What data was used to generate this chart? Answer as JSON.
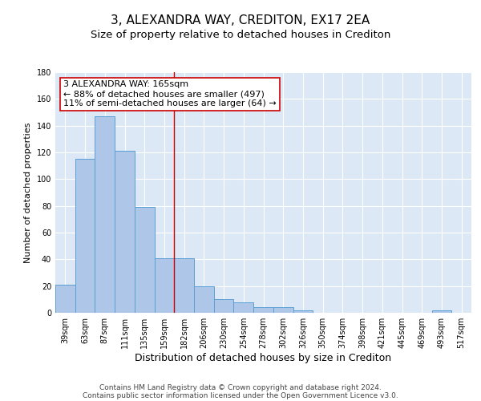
{
  "title": "3, ALEXANDRA WAY, CREDITON, EX17 2EA",
  "subtitle": "Size of property relative to detached houses in Crediton",
  "xlabel": "Distribution of detached houses by size in Crediton",
  "ylabel": "Number of detached properties",
  "categories": [
    "39sqm",
    "63sqm",
    "87sqm",
    "111sqm",
    "135sqm",
    "159sqm",
    "182sqm",
    "206sqm",
    "230sqm",
    "254sqm",
    "278sqm",
    "302sqm",
    "326sqm",
    "350sqm",
    "374sqm",
    "398sqm",
    "421sqm",
    "445sqm",
    "469sqm",
    "493sqm",
    "517sqm"
  ],
  "values": [
    21,
    115,
    147,
    121,
    79,
    41,
    41,
    20,
    10,
    8,
    4,
    4,
    2,
    0,
    0,
    0,
    0,
    0,
    0,
    2,
    0
  ],
  "bar_color": "#aec6e8",
  "bar_edge_color": "#5a9fd4",
  "vline_x_index": 5.5,
  "vline_color": "#cc0000",
  "annotation_line1": "3 ALEXANDRA WAY: 165sqm",
  "annotation_line2": "← 88% of detached houses are smaller (497)",
  "annotation_line3": "11% of semi-detached houses are larger (64) →",
  "annotation_box_color": "#ffffff",
  "annotation_box_edge_color": "#cc0000",
  "ylim": [
    0,
    180
  ],
  "yticks": [
    0,
    20,
    40,
    60,
    80,
    100,
    120,
    140,
    160,
    180
  ],
  "bg_color": "#dce8f5",
  "grid_color": "#ffffff",
  "footer_line1": "Contains HM Land Registry data © Crown copyright and database right 2024.",
  "footer_line2": "Contains public sector information licensed under the Open Government Licence v3.0.",
  "title_fontsize": 11,
  "subtitle_fontsize": 9.5,
  "xlabel_fontsize": 9,
  "ylabel_fontsize": 8,
  "tick_fontsize": 7,
  "annotation_fontsize": 8,
  "footer_fontsize": 6.5
}
